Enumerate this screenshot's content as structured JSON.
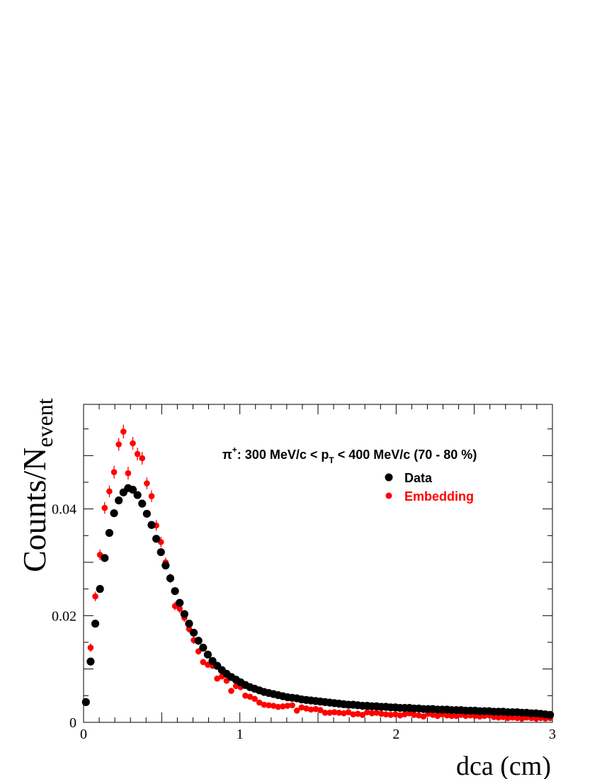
{
  "chart_data": {
    "type": "scatter",
    "xlabel": "dca (cm)",
    "ylabel_main": "Counts/N",
    "ylabel_sub": "event",
    "xlim": [
      0,
      3
    ],
    "ylim": [
      0,
      0.0596
    ],
    "x_ticks": [
      {
        "value": 0,
        "label": "0"
      },
      {
        "value": 1,
        "label": "1"
      },
      {
        "value": 2,
        "label": "2"
      },
      {
        "value": 3,
        "label": "3"
      }
    ],
    "y_ticks": [
      {
        "value": 0,
        "label": "0"
      },
      {
        "value": 0.02,
        "label": "0.02"
      },
      {
        "value": 0.04,
        "label": "0.04"
      }
    ],
    "annotation": {
      "particle": "π",
      "charge": "+",
      "pre": ": 300 MeV/c < p",
      "sub": "T",
      "post": " < 400 MeV/c (70 - 80 %)"
    },
    "legend": {
      "placement": "top-right"
    },
    "series": [
      {
        "name": "Data",
        "color": "#000000",
        "x": [
          0.015,
          0.045,
          0.075,
          0.105,
          0.135,
          0.165,
          0.195,
          0.225,
          0.255,
          0.285,
          0.315,
          0.345,
          0.375,
          0.405,
          0.435,
          0.465,
          0.495,
          0.525,
          0.555,
          0.585,
          0.615,
          0.645,
          0.675,
          0.705,
          0.735,
          0.765,
          0.795,
          0.825,
          0.855,
          0.885,
          0.915,
          0.945,
          0.975,
          1.005,
          1.035,
          1.065,
          1.095,
          1.125,
          1.155,
          1.185,
          1.215,
          1.245,
          1.275,
          1.305,
          1.335,
          1.365,
          1.395,
          1.425,
          1.455,
          1.485,
          1.515,
          1.545,
          1.575,
          1.605,
          1.635,
          1.665,
          1.695,
          1.725,
          1.755,
          1.785,
          1.815,
          1.845,
          1.875,
          1.905,
          1.935,
          1.965,
          1.995,
          2.025,
          2.055,
          2.085,
          2.115,
          2.145,
          2.175,
          2.205,
          2.235,
          2.265,
          2.295,
          2.325,
          2.355,
          2.385,
          2.415,
          2.445,
          2.475,
          2.505,
          2.535,
          2.565,
          2.595,
          2.625,
          2.655,
          2.685,
          2.715,
          2.745,
          2.775,
          2.805,
          2.835,
          2.865,
          2.895,
          2.925,
          2.955,
          2.985
        ],
        "y": [
          0.0038,
          0.0114,
          0.0185,
          0.025,
          0.0308,
          0.0355,
          0.0392,
          0.0416,
          0.0431,
          0.0439,
          0.0436,
          0.0426,
          0.041,
          0.0391,
          0.037,
          0.0344,
          0.0319,
          0.0294,
          0.027,
          0.0246,
          0.0224,
          0.0203,
          0.0185,
          0.0168,
          0.0153,
          0.014,
          0.0127,
          0.0115,
          0.0106,
          0.0098,
          0.0091,
          0.0085,
          0.008,
          0.0075,
          0.007,
          0.0066,
          0.0063,
          0.006,
          0.0057,
          0.0055,
          0.0053,
          0.0051,
          0.0049,
          0.0047,
          0.0046,
          0.0045,
          0.0043,
          0.0042,
          0.0041,
          0.004,
          0.0039,
          0.0038,
          0.0037,
          0.0036,
          0.0035,
          0.0034,
          0.0033,
          0.0033,
          0.0032,
          0.0031,
          0.0031,
          0.003,
          0.003,
          0.0029,
          0.0029,
          0.0028,
          0.0028,
          0.0027,
          0.0027,
          0.0027,
          0.0026,
          0.0026,
          0.0025,
          0.0025,
          0.0025,
          0.0024,
          0.0024,
          0.0024,
          0.0023,
          0.0023,
          0.0023,
          0.0022,
          0.0022,
          0.0022,
          0.0021,
          0.0021,
          0.0021,
          0.002,
          0.002,
          0.002,
          0.0019,
          0.0019,
          0.0019,
          0.0018,
          0.0018,
          0.0017,
          0.0017,
          0.0016,
          0.0015,
          0.0014
        ]
      },
      {
        "name": "Embedding",
        "color": "#ff0000",
        "x": [
          0.015,
          0.045,
          0.075,
          0.105,
          0.135,
          0.165,
          0.195,
          0.225,
          0.255,
          0.285,
          0.315,
          0.345,
          0.375,
          0.405,
          0.435,
          0.465,
          0.495,
          0.525,
          0.555,
          0.585,
          0.615,
          0.645,
          0.675,
          0.705,
          0.735,
          0.765,
          0.795,
          0.825,
          0.855,
          0.885,
          0.915,
          0.945,
          0.975,
          1.005,
          1.035,
          1.065,
          1.095,
          1.125,
          1.155,
          1.185,
          1.215,
          1.245,
          1.275,
          1.305,
          1.335,
          1.365,
          1.395,
          1.425,
          1.455,
          1.485,
          1.515,
          1.545,
          1.575,
          1.605,
          1.635,
          1.665,
          1.695,
          1.725,
          1.755,
          1.785,
          1.815,
          1.845,
          1.875,
          1.905,
          1.935,
          1.965,
          1.995,
          2.025,
          2.055,
          2.085,
          2.115,
          2.145,
          2.175,
          2.205,
          2.235,
          2.265,
          2.295,
          2.325,
          2.355,
          2.385,
          2.415,
          2.445,
          2.475,
          2.505,
          2.535,
          2.565,
          2.595,
          2.625,
          2.655,
          2.685,
          2.715,
          2.745,
          2.775,
          2.805,
          2.835,
          2.865,
          2.895,
          2.925,
          2.955,
          2.985
        ],
        "y": [
          null,
          0.014,
          0.0236,
          0.0314,
          0.0402,
          0.0433,
          0.0469,
          0.0521,
          0.0545,
          0.0467,
          0.0523,
          0.0503,
          0.0495,
          0.0448,
          0.0424,
          0.0369,
          0.0338,
          0.03,
          0.027,
          0.0218,
          0.0213,
          0.0196,
          0.0175,
          0.0154,
          0.0133,
          0.0113,
          0.0108,
          0.0106,
          0.0082,
          0.0086,
          0.0078,
          0.0059,
          0.0068,
          0.0066,
          0.005,
          0.0048,
          0.0044,
          0.0037,
          0.0033,
          0.0032,
          0.0031,
          0.0029,
          0.003,
          0.0031,
          0.0032,
          0.0022,
          0.0028,
          0.0026,
          0.0024,
          0.0025,
          0.0023,
          0.0018,
          0.0018,
          0.0019,
          0.0018,
          0.0017,
          0.0019,
          0.0015,
          0.0016,
          0.0014,
          0.0019,
          0.0017,
          0.0018,
          0.0016,
          0.0015,
          0.0014,
          0.0015,
          0.0013,
          0.0015,
          0.0017,
          0.0014,
          0.0013,
          0.0011,
          0.0016,
          0.0014,
          0.0012,
          0.0015,
          0.0013,
          0.0012,
          0.0012,
          0.0014,
          0.0012,
          0.0013,
          0.0012,
          0.0011,
          0.0012,
          0.0013,
          0.001,
          0.0009,
          0.001,
          0.0008,
          0.0009,
          0.0008,
          0.0007,
          0.0009,
          0.0008,
          0.0007,
          0.0008,
          0.0007,
          0.0008
        ],
        "err": [
          null,
          0.0008,
          0.0009,
          0.001,
          0.0011,
          0.0011,
          0.0012,
          0.0012,
          0.0013,
          0.0012,
          0.0012,
          0.0012,
          0.0012,
          0.0011,
          0.0011,
          0.001,
          0.001,
          0.0009,
          0.0009,
          0.0008,
          0.0008,
          0.0008,
          0.0007,
          0.0007,
          0.0006,
          0.0006,
          0.0006,
          0.0006,
          0.0005,
          0.0005,
          0.0005,
          0.0004,
          0.0004,
          0.0004,
          0.0004,
          0.0004,
          0.0003,
          0.0003,
          0.0003,
          0.0003,
          0.0003,
          0.0003,
          0.0003,
          0.0003,
          0.0003,
          0.0003,
          0.0003,
          0.0003,
          0.0003,
          0.0003,
          0.0003,
          0.0002,
          0.0002,
          0.0002,
          0.0002,
          0.0002,
          0.0002,
          0.0002,
          0.0002,
          0.0002,
          0.0002,
          0.0002,
          0.0002,
          0.0002,
          0.0002,
          0.0002,
          0.0002,
          0.0002,
          0.0002,
          0.0002,
          0.0002,
          0.0002,
          0.0002,
          0.0002,
          0.0002,
          0.0002,
          0.0002,
          0.0002,
          0.0002,
          0.0002,
          0.0002,
          0.0002,
          0.0002,
          0.0002,
          0.0002,
          0.0002,
          0.0002,
          0.0002,
          0.0002,
          0.0002,
          0.0002,
          0.0002,
          0.0002,
          0.0002,
          0.0002,
          0.0002,
          0.0002,
          0.0002,
          0.0002,
          0.0002
        ]
      }
    ]
  }
}
